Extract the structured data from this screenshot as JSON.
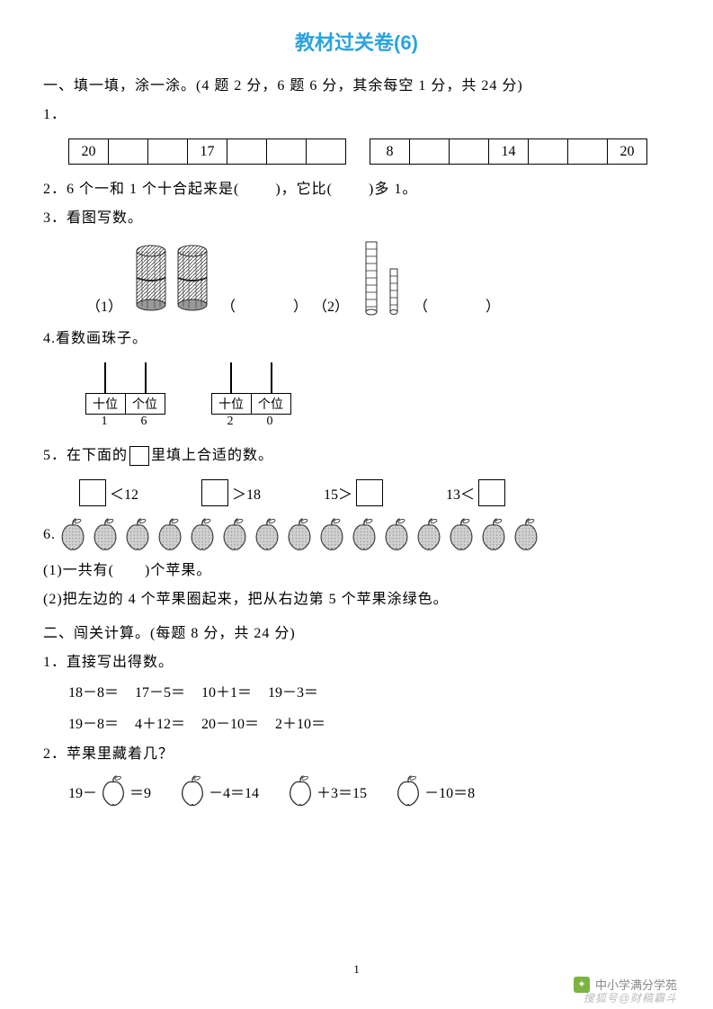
{
  "title": "教材过关卷(6)",
  "section1": {
    "header": "一、填一填，涂一涂。(4 题 2 分，6 题 6 分，其余每空 1 分，共 24 分)",
    "q1": {
      "label": "1．",
      "table_a": [
        "20",
        "",
        "",
        "17",
        "",
        "",
        ""
      ],
      "table_b": [
        "8",
        "",
        "",
        "14",
        "",
        "",
        "20"
      ]
    },
    "q2": {
      "text_a": "2．6 个一和 1 个十合起来是(",
      "text_b": ")，它比(",
      "text_c": ")多 1。"
    },
    "q3": {
      "label": "3．看图写数。",
      "p1_prefix": "（1）",
      "p1_blank": "（　　　　）",
      "p2_prefix": "（2）",
      "p2_blank": "（　　　　）"
    },
    "q4": {
      "label": "4.看数画珠子。",
      "labels": [
        "十位",
        "个位"
      ],
      "a_nums": [
        "1",
        "6"
      ],
      "b_nums": [
        "2",
        "0"
      ]
    },
    "q5": {
      "label_a": "5．在下面的",
      "label_b": "里填上合适的数。",
      "items": [
        "＜12",
        "＞18",
        "15＞",
        "13＜"
      ]
    },
    "q6": {
      "prefix": "6.",
      "apple_count": 15,
      "sub1": "(1)一共有(　　)个苹果。",
      "sub2": "(2)把左边的 4 个苹果圈起来，把从右边第 5 个苹果涂绿色。"
    }
  },
  "section2": {
    "header": "二、闯关计算。(每题 8 分，共 24 分)",
    "q1": {
      "label": "1．直接写出得数。",
      "row1": [
        "18－8＝",
        "17－5＝",
        "10＋1＝",
        "19－3＝"
      ],
      "row2": [
        "19－8＝",
        "4＋12＝",
        "20－10＝",
        "2＋10＝"
      ]
    },
    "q2": {
      "label": "2．苹果里藏着几？",
      "items": [
        {
          "pre": "19－",
          "post": "＝9"
        },
        {
          "pre": "",
          "post": "－4＝14"
        },
        {
          "pre": "",
          "post": "＋3＝15"
        },
        {
          "pre": "",
          "post": "－10＝8"
        }
      ]
    }
  },
  "page_number": "1",
  "watermark1": "中小学满分学苑",
  "watermark2": "搜狐号@财稿霸斗",
  "colors": {
    "title": "#2aa3e0",
    "text": "#000000",
    "apple_fill": "#d0d0d0",
    "apple_stroke": "#333333"
  }
}
